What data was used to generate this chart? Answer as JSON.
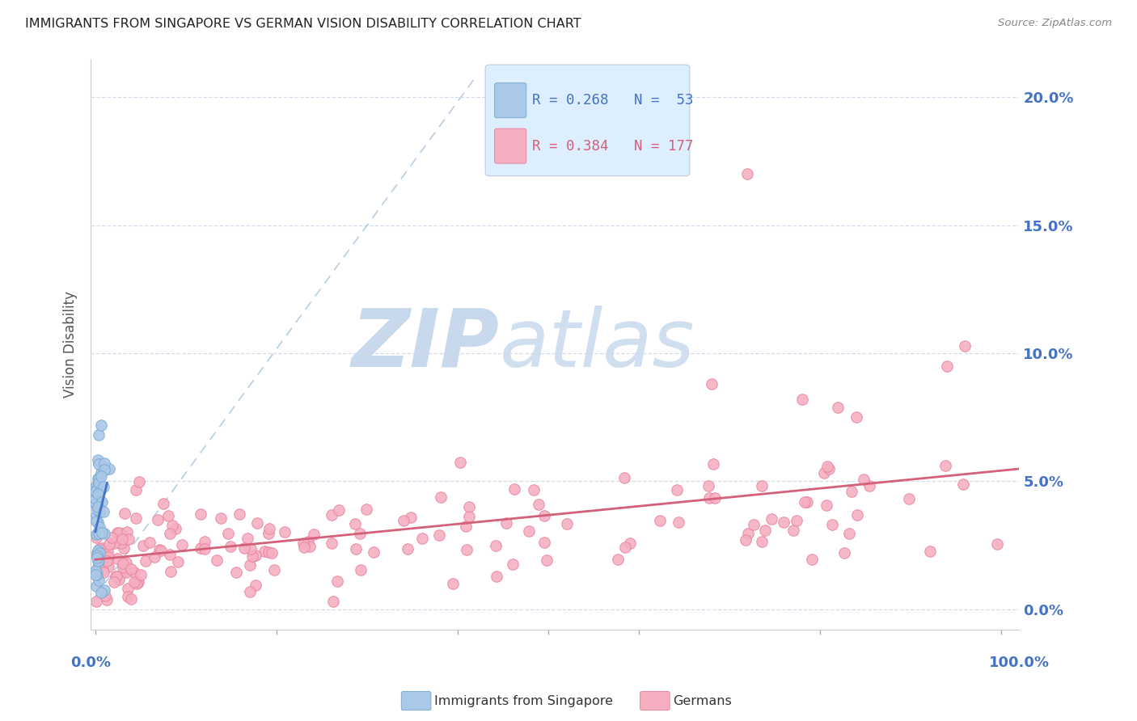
{
  "title": "IMMIGRANTS FROM SINGAPORE VS GERMAN VISION DISABILITY CORRELATION CHART",
  "source": "Source: ZipAtlas.com",
  "ylabel": "Vision Disability",
  "ytick_values": [
    0.0,
    0.05,
    0.1,
    0.15,
    0.2
  ],
  "ytick_labels": [
    "0.0%",
    "5.0%",
    "10.0%",
    "15.0%",
    "20.0%"
  ],
  "xlim": [
    -0.005,
    1.02
  ],
  "ylim": [
    -0.008,
    0.215
  ],
  "blue_R": 0.268,
  "blue_N": 53,
  "pink_R": 0.384,
  "pink_N": 177,
  "blue_color": "#aac8e8",
  "blue_edge_color": "#7aaad0",
  "pink_color": "#f5afc0",
  "pink_edge_color": "#e882a0",
  "blue_line_color": "#4472c4",
  "pink_line_color": "#d4607a",
  "dashed_line_color": "#b0c8e0",
  "watermark_ZIP_color": "#c8d8ed",
  "watermark_atlas_color": "#d0dff0",
  "axis_label_color": "#4472c4",
  "grid_color": "#d0d8e8",
  "background_color": "#ffffff",
  "legend_bg_color": "#ddeeff",
  "legend_border_color": "#bbccdd",
  "legend_text_blue": "#4472c4",
  "legend_text_pink": "#d4607a"
}
